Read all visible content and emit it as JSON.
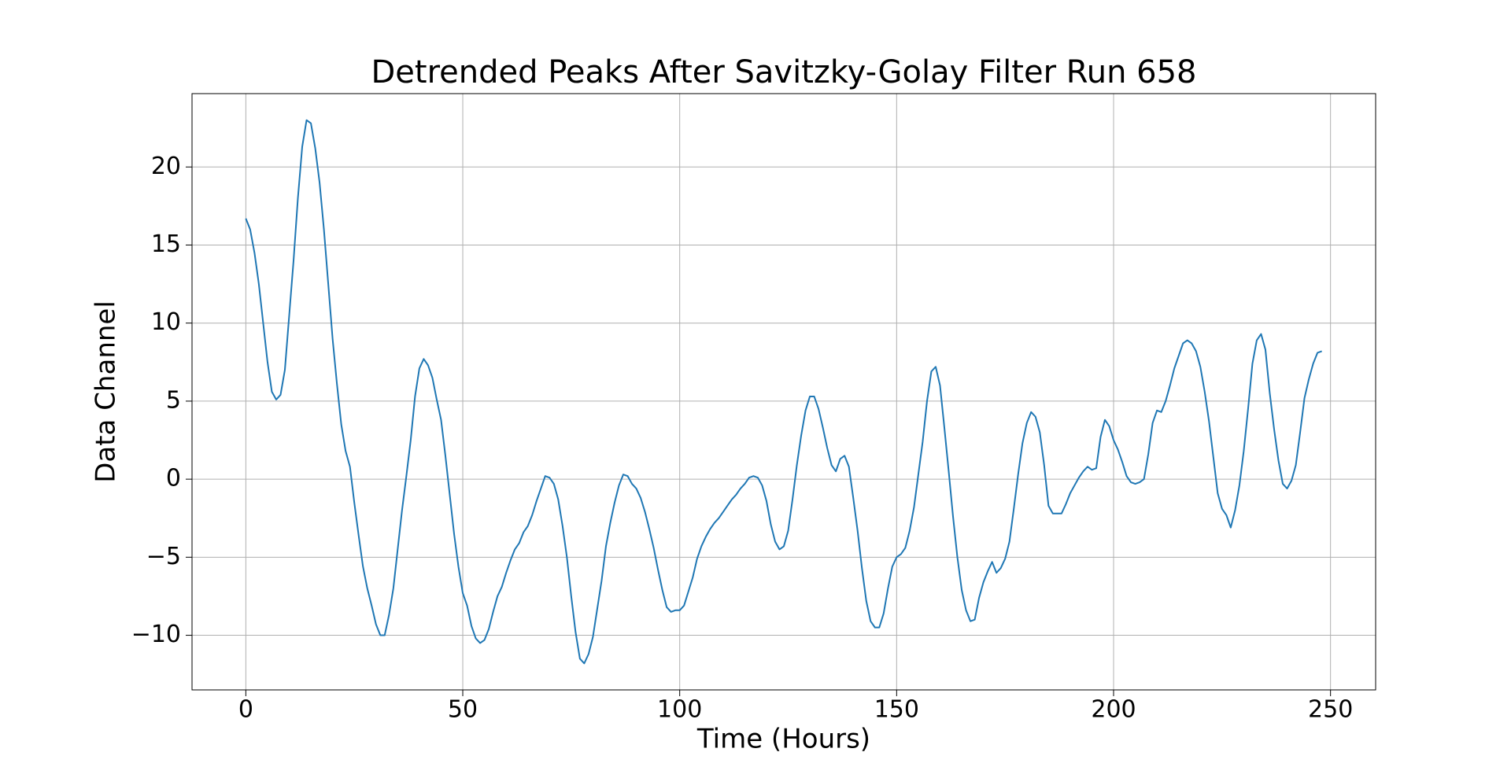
{
  "chart_data": {
    "type": "line",
    "title": "Detrended Peaks After Savitzky-Golay Filter Run 658",
    "x_label": "Time (Hours)",
    "y_label": "Data Channel",
    "x": [
      0,
      1,
      2,
      3,
      4,
      5,
      6,
      7,
      8,
      9,
      10,
      11,
      12,
      13,
      14,
      15,
      16,
      17,
      18,
      19,
      20,
      21,
      22,
      23,
      24,
      25,
      26,
      27,
      28,
      29,
      30,
      31,
      32,
      33,
      34,
      35,
      36,
      37,
      38,
      39,
      40,
      41,
      42,
      43,
      44,
      45,
      46,
      47,
      48,
      49,
      50,
      51,
      52,
      53,
      54,
      55,
      56,
      57,
      58,
      59,
      60,
      61,
      62,
      63,
      64,
      65,
      66,
      67,
      68,
      69,
      70,
      71,
      72,
      73,
      74,
      75,
      76,
      77,
      78,
      79,
      80,
      81,
      82,
      83,
      84,
      85,
      86,
      87,
      88,
      89,
      90,
      91,
      92,
      93,
      94,
      95,
      96,
      97,
      98,
      99,
      100,
      101,
      102,
      103,
      104,
      105,
      106,
      107,
      108,
      109,
      110,
      111,
      112,
      113,
      114,
      115,
      116,
      117,
      118,
      119,
      120,
      121,
      122,
      123,
      124,
      125,
      126,
      127,
      128,
      129,
      130,
      131,
      132,
      133,
      134,
      135,
      136,
      137,
      138,
      139,
      140,
      141,
      142,
      143,
      144,
      145,
      146,
      147,
      148,
      149,
      150,
      151,
      152,
      153,
      154,
      155,
      156,
      157,
      158,
      159,
      160,
      161,
      162,
      163,
      164,
      165,
      166,
      167,
      168,
      169,
      170,
      171,
      172,
      173,
      174,
      175,
      176,
      177,
      178,
      179,
      180,
      181,
      182,
      183,
      184,
      185,
      186,
      187,
      188,
      189,
      190,
      191,
      192,
      193,
      194,
      195,
      196,
      197,
      198,
      199,
      200,
      201,
      202,
      203,
      204,
      205,
      206,
      207,
      208,
      209,
      210,
      211,
      212,
      213,
      214,
      215,
      216,
      217,
      218,
      219,
      220,
      221,
      222,
      223,
      224,
      225,
      226,
      227,
      228,
      229,
      230,
      231,
      232,
      233,
      234,
      235,
      236,
      237,
      238,
      239,
      240,
      241,
      242,
      243,
      244,
      245,
      246,
      247,
      248
    ],
    "series": [
      {
        "color": "#1f77b4",
        "values": [
          16.7,
          16.0,
          14.5,
          12.5,
          10,
          7.5,
          5.6,
          5.1,
          5.4,
          7,
          10.5,
          14,
          18,
          21.3,
          23.0,
          22.8,
          21.2,
          19,
          16,
          12.5,
          9,
          6.1,
          3.5,
          1.8,
          0.8,
          -1.5,
          -3.6,
          -5.6,
          -7,
          -8.1,
          -9.3,
          -10,
          -10,
          -8.7,
          -7,
          -4.5,
          -2,
          0.2,
          2.5,
          5.3,
          7.1,
          7.7,
          7.3,
          6.5,
          5.1,
          3.8,
          1.5,
          -1,
          -3.5,
          -5.6,
          -7.3,
          -8.1,
          -9.4,
          -10.2,
          -10.5,
          -10.3,
          -9.6,
          -8.5,
          -7.5,
          -6.9,
          -6,
          -5.2,
          -4.5,
          -4.1,
          -3.4,
          -3,
          -2.3,
          -1.4,
          -0.6,
          0.2,
          0.1,
          -0.3,
          -1.3,
          -3,
          -5,
          -7.5,
          -9.8,
          -11.5,
          -11.8,
          -11.2,
          -10.1,
          -8.3,
          -6.5,
          -4.3,
          -2.8,
          -1.5,
          -0.4,
          0.3,
          0.2,
          -0.3,
          -0.6,
          -1.2,
          -2.1,
          -3.2,
          -4.4,
          -5.8,
          -7.1,
          -8.2,
          -8.5,
          -8.4,
          -8.4,
          -8.1,
          -7.2,
          -6.3,
          -5.1,
          -4.3,
          -3.7,
          -3.2,
          -2.8,
          -2.5,
          -2.1,
          -1.7,
          -1.3,
          -1,
          -0.6,
          -0.3,
          0.1,
          0.2,
          0.1,
          -0.4,
          -1.4,
          -2.9,
          -4,
          -4.5,
          -4.3,
          -3.3,
          -1.3,
          0.9,
          2.8,
          4.4,
          5.3,
          5.3,
          4.5,
          3.3,
          2,
          0.9,
          0.5,
          1.3,
          1.5,
          0.8,
          -1.2,
          -3.3,
          -5.7,
          -7.8,
          -9.1,
          -9.5,
          -9.5,
          -8.6,
          -7,
          -5.6,
          -5,
          -4.8,
          -4.4,
          -3.3,
          -1.8,
          0.3,
          2.4,
          5,
          6.9,
          7.2,
          6,
          3.3,
          0.5,
          -2.4,
          -5,
          -7.1,
          -8.4,
          -9.1,
          -9,
          -7.6,
          -6.6,
          -5.9,
          -5.3,
          -6,
          -5.7,
          -5.1,
          -4,
          -1.9,
          0.3,
          2.3,
          3.6,
          4.3,
          4,
          3,
          0.9,
          -1.7,
          -2.2,
          -2.2,
          -2.2,
          -1.6,
          -0.9,
          -0.4,
          0.1,
          0.5,
          0.8,
          0.6,
          0.7,
          2.7,
          3.8,
          3.4,
          2.5,
          1.9,
          1.1,
          0.2,
          -0.2,
          -0.3,
          -0.2,
          0,
          1.6,
          3.6,
          4.4,
          4.3,
          5,
          6,
          7.1,
          7.9,
          8.7,
          8.9,
          8.7,
          8.2,
          7.2,
          5.6,
          3.7,
          1.4,
          -0.9,
          -1.9,
          -2.3,
          -3.1,
          -2,
          -0.4,
          1.8,
          4.5,
          7.4,
          8.9,
          9.3,
          8.3,
          5.5,
          3.2,
          1.2,
          -0.3,
          -0.6,
          -0.1,
          0.9,
          3,
          5.2,
          6.4,
          7.4,
          8.1,
          8.2
        ]
      }
    ],
    "xlim": [
      -12.4,
      260.4
    ],
    "ylim": [
      -13.5,
      24.7
    ],
    "xticks": [
      0,
      50,
      100,
      150,
      200,
      250
    ],
    "yticks": [
      {
        "value": -10,
        "label": "−10"
      },
      {
        "value": -5,
        "label": "−5"
      },
      0,
      5,
      10,
      15,
      20
    ],
    "grid": true
  }
}
